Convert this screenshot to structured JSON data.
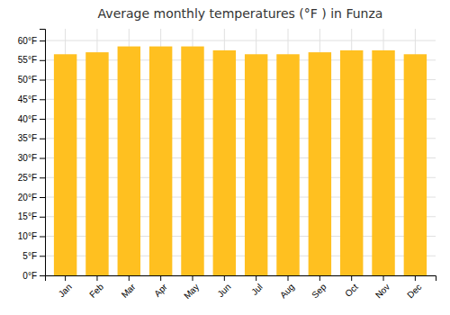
{
  "chart_data": {
    "type": "bar",
    "title": "Average monthly temperatures (°F ) in Funza",
    "categories": [
      "Jan",
      "Feb",
      "Mar",
      "Apr",
      "May",
      "Jun",
      "Jul",
      "Aug",
      "Sep",
      "Oct",
      "Nov",
      "Dec"
    ],
    "values": [
      56.5,
      57.0,
      58.5,
      58.5,
      58.5,
      57.5,
      56.5,
      56.5,
      57.0,
      57.5,
      57.5,
      56.5
    ],
    "color": "#FFC020",
    "ylim": [
      0,
      63
    ],
    "yticks": [
      {
        "value": 0,
        "label": "0°F"
      },
      {
        "value": 5,
        "label": "5°F"
      },
      {
        "value": 10,
        "label": "10°F"
      },
      {
        "value": 15,
        "label": "15°F"
      },
      {
        "value": 20,
        "label": "20°F"
      },
      {
        "value": 25,
        "label": "25°F"
      },
      {
        "value": 30,
        "label": "30°F"
      },
      {
        "value": 35,
        "label": "35°F"
      },
      {
        "value": 40,
        "label": "40°F"
      },
      {
        "value": 45,
        "label": "45°F"
      },
      {
        "value": 50,
        "label": "50°F"
      },
      {
        "value": 55,
        "label": "55°F"
      },
      {
        "value": 60,
        "label": "60°F"
      }
    ],
    "grid": true
  }
}
